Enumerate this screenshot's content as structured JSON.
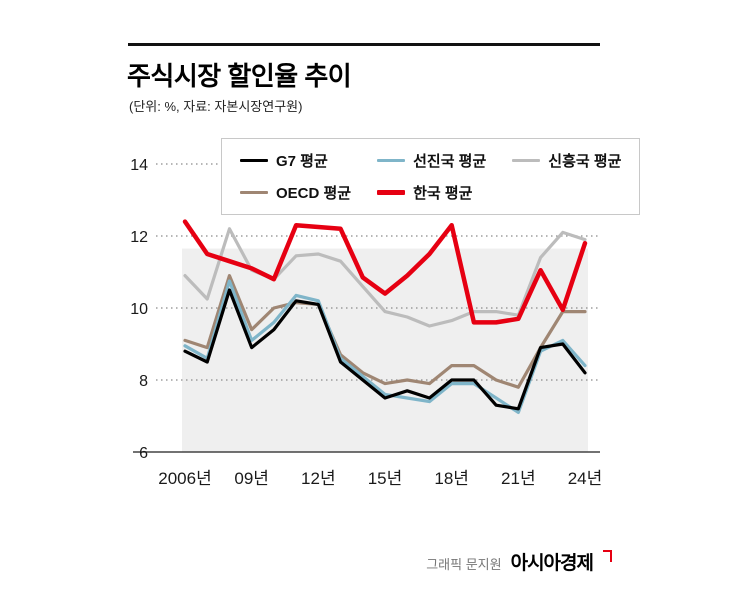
{
  "header": {
    "title": "주식시장 할인율 추이",
    "subtitle": "(단위: %, 자료: 자본시장연구원)"
  },
  "footer": {
    "credit": "그래픽 문지원",
    "brand": "아시아경제"
  },
  "chart_data": {
    "type": "line",
    "title": "주식시장 할인율 추이",
    "unit": "%",
    "source": "자본시장연구원",
    "x": [
      2006,
      2007,
      2008,
      2009,
      2010,
      2011,
      2012,
      2013,
      2014,
      2015,
      2016,
      2017,
      2018,
      2019,
      2020,
      2021,
      2022,
      2023,
      2024
    ],
    "x_tick_labels": [
      {
        "year": 2006,
        "label": "2006년"
      },
      {
        "year": 2009,
        "label": "09년"
      },
      {
        "year": 2012,
        "label": "12년"
      },
      {
        "year": 2015,
        "label": "15년"
      },
      {
        "year": 2018,
        "label": "18년"
      },
      {
        "year": 2021,
        "label": "21년"
      },
      {
        "year": 2024,
        "label": "24년"
      }
    ],
    "ylim": [
      6,
      14
    ],
    "y_ticks": [
      6,
      8,
      10,
      12,
      14
    ],
    "grid": "dashed-horizontal",
    "legend_position": "top",
    "plot_background": "#efefef",
    "plot_band_top": 11.65,
    "draw_order": [
      2,
      3,
      1,
      0,
      4
    ],
    "series": [
      {
        "id": "g7-average",
        "name": "G7 평균",
        "color": "#000000",
        "stroke_width": 3.2,
        "values": [
          8.8,
          8.5,
          10.5,
          8.9,
          9.4,
          10.2,
          10.1,
          8.5,
          8.0,
          7.5,
          7.7,
          7.5,
          8.0,
          8.0,
          7.3,
          7.2,
          8.9,
          9.0,
          8.2
        ]
      },
      {
        "id": "developed-average",
        "name": "선진국 평균",
        "color": "#7fb5c9",
        "stroke_width": 3.2,
        "values": [
          8.95,
          8.6,
          10.75,
          9.1,
          9.6,
          10.35,
          10.2,
          8.6,
          8.1,
          7.6,
          7.5,
          7.4,
          7.9,
          7.9,
          7.5,
          7.1,
          8.8,
          9.1,
          8.4
        ]
      },
      {
        "id": "emerging-average",
        "name": "신흥국 평균",
        "color": "#bcbcbc",
        "stroke_width": 3.2,
        "values": [
          10.9,
          10.25,
          12.2,
          11.05,
          10.8,
          11.45,
          11.5,
          11.3,
          10.6,
          9.9,
          9.75,
          9.5,
          9.65,
          9.9,
          9.9,
          9.8,
          11.4,
          12.1,
          11.9
        ]
      },
      {
        "id": "oecd-average",
        "name": "OECD 평균",
        "color": "#9f8673",
        "stroke_width": 3.2,
        "values": [
          9.1,
          8.9,
          10.9,
          9.4,
          10.0,
          10.15,
          10.1,
          8.7,
          8.2,
          7.9,
          8.0,
          7.9,
          8.4,
          8.4,
          8.0,
          7.8,
          8.9,
          9.9,
          9.9
        ]
      },
      {
        "id": "korea-average",
        "name": "한국 평균",
        "color": "#e60012",
        "stroke_width": 4.5,
        "values": [
          12.4,
          11.5,
          11.3,
          11.1,
          10.8,
          12.3,
          12.25,
          12.2,
          10.85,
          10.4,
          10.9,
          11.5,
          12.3,
          9.6,
          9.6,
          9.7,
          11.05,
          9.95,
          11.8
        ]
      }
    ]
  }
}
